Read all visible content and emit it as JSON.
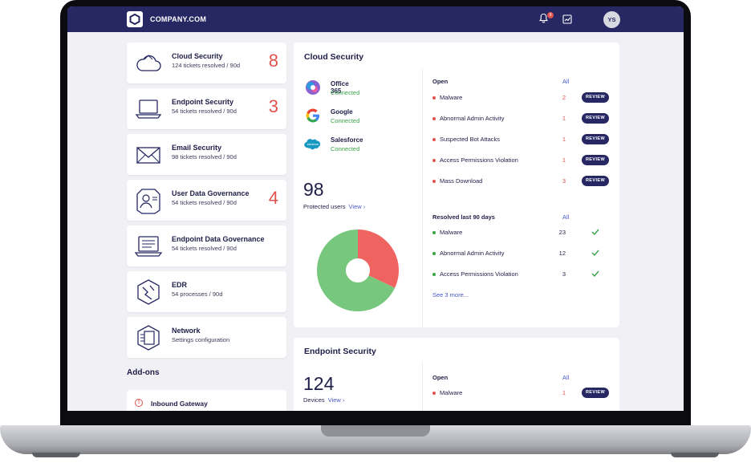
{
  "header": {
    "brand": "COMPANY.COM",
    "notification_count": "9",
    "avatar_initials": "YS"
  },
  "sidebar": {
    "cards": [
      {
        "title": "Cloud Security",
        "subtitle": "124 tickets resolved / 90d",
        "count": "8",
        "icon": "cloud-icon"
      },
      {
        "title": "Endpoint Security",
        "subtitle": "54 tickets resolved / 90d",
        "count": "3",
        "icon": "laptop-icon"
      },
      {
        "title": "Email Security",
        "subtitle": "98 tickets resolved / 90d",
        "count": "",
        "icon": "envelope-icon"
      },
      {
        "title": "User Data Governance",
        "subtitle": "54 tickets resolved / 90d",
        "count": "4",
        "icon": "user-id-icon"
      },
      {
        "title": "Endpoint Data Governance",
        "subtitle": "54 tickets resolved / 90d",
        "count": "",
        "icon": "document-laptop-icon"
      },
      {
        "title": "EDR",
        "subtitle": "54 processes / 90d",
        "count": "",
        "icon": "edr-icon"
      },
      {
        "title": "Network",
        "subtitle": "Settings configuration",
        "count": "",
        "icon": "network-icon"
      }
    ],
    "addons_title": "Add-ons",
    "addons": [
      {
        "title": "Inbound Gateway",
        "icon": "alert-circle-icon"
      }
    ]
  },
  "cloud_security": {
    "title": "Cloud Security",
    "apps": [
      {
        "name": "Office 365",
        "status": "Connected",
        "icon": "office365-icon"
      },
      {
        "name": "Google",
        "status": "Connected",
        "icon": "google-icon"
      },
      {
        "name": "Salesforce",
        "status": "Connected",
        "icon": "salesforce-icon"
      }
    ],
    "protected_users": "98",
    "protected_users_label": "Protected users",
    "view_label": "View ›",
    "open_title": "Open",
    "all_label": "All",
    "review_label": "REVIEW",
    "open_items": [
      {
        "label": "Malware",
        "count": "2"
      },
      {
        "label": "Abnormal Admin Activity",
        "count": "1"
      },
      {
        "label": "Suspected Bot Attacks",
        "count": "1"
      },
      {
        "label": "Access Permissions Violation",
        "count": "1"
      },
      {
        "label": "Mass Download",
        "count": "3"
      }
    ],
    "resolved_title": "Resolved last 90 days",
    "resolved_items": [
      {
        "label": "Malware",
        "count": "23"
      },
      {
        "label": "Abnormal Admin Activity",
        "count": "12"
      },
      {
        "label": "Access Permissions Violation",
        "count": "3"
      }
    ],
    "see_more": "See 3 more...",
    "donut": {
      "red_fraction": 0.32,
      "green_fraction": 0.68,
      "red_color": "#ef6461",
      "green_color": "#78c77e"
    }
  },
  "endpoint_security": {
    "title": "Endpoint Security",
    "devices": "124",
    "devices_label": "Devices",
    "view_label": "View ›",
    "open_title": "Open",
    "all_label": "All",
    "review_label": "REVIEW",
    "open_items": [
      {
        "label": "Malware",
        "count": "1"
      }
    ]
  },
  "colors": {
    "navy": "#262763",
    "alert_red": "#e0524d",
    "ok_green": "#3aa346",
    "link_blue": "#4a58c8"
  }
}
